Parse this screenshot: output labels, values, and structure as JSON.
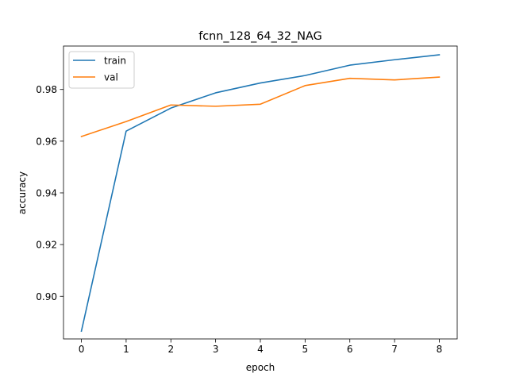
{
  "chart_data": {
    "type": "line",
    "title": "fcnn_128_64_32_NAG",
    "xlabel": "epoch",
    "ylabel": "accuracy",
    "x": [
      0,
      1,
      2,
      3,
      4,
      5,
      6,
      7,
      8
    ],
    "xlim": [
      -0.4,
      8.4
    ],
    "ylim": [
      0.8835,
      0.9968
    ],
    "xticks": [
      0,
      1,
      2,
      3,
      4,
      5,
      6,
      7,
      8
    ],
    "xtick_labels": [
      "0",
      "1",
      "2",
      "3",
      "4",
      "5",
      "6",
      "7",
      "8"
    ],
    "yticks": [
      0.9,
      0.92,
      0.94,
      0.96,
      0.98
    ],
    "ytick_labels": [
      "0.90",
      "0.92",
      "0.94",
      "0.96",
      "0.98"
    ],
    "grid": false,
    "legend_position": "top-left",
    "series": [
      {
        "name": "train",
        "color": "#1f77b4",
        "values": [
          0.8865,
          0.9639,
          0.9728,
          0.9787,
          0.9825,
          0.9854,
          0.9894,
          0.9915,
          0.9934
        ]
      },
      {
        "name": "val",
        "color": "#ff7f0e",
        "values": [
          0.9618,
          0.9676,
          0.974,
          0.9735,
          0.9743,
          0.9815,
          0.9843,
          0.9837,
          0.9848
        ]
      }
    ]
  }
}
